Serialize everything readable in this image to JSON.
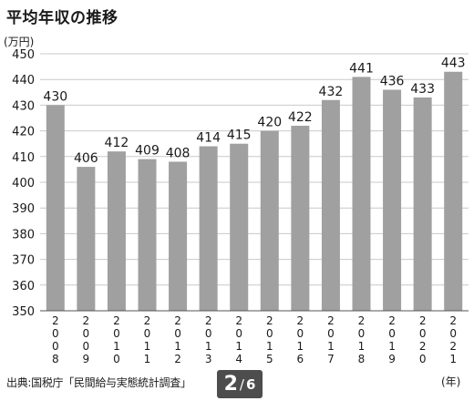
{
  "title": "平均年収の推移",
  "source": "出典:国税庁「民間給与実態統計調査」",
  "pager": {
    "current": "2",
    "sep": "/",
    "total": "6"
  },
  "colors": {
    "bar": "#a0a0a0",
    "grid": "#c9c9c9",
    "axis": "#555555",
    "text": "#1a1a1a"
  },
  "chart_data": {
    "type": "bar",
    "title": "平均年収の推移",
    "ylabel": "(万円)",
    "xlabel": "(年)",
    "categories": [
      "2008",
      "2009",
      "2010",
      "2011",
      "2012",
      "2013",
      "2014",
      "2015",
      "2016",
      "2017",
      "2018",
      "2019",
      "2020",
      "2021"
    ],
    "values": [
      430,
      406,
      412,
      409,
      408,
      414,
      415,
      420,
      422,
      432,
      441,
      436,
      433,
      443
    ],
    "yticks": [
      350,
      360,
      370,
      380,
      390,
      400,
      410,
      420,
      430,
      440,
      450
    ],
    "ylim": [
      350,
      450
    ],
    "grid": true,
    "data_labels": true
  }
}
